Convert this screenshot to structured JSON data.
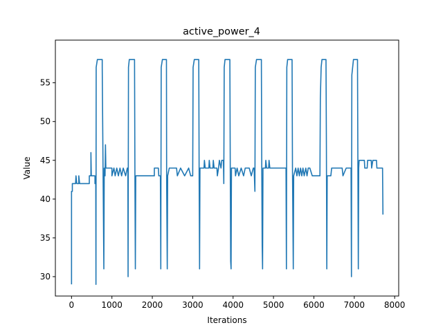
{
  "chart_data": {
    "type": "line",
    "title": "active_power_4",
    "xlabel": "Iterations",
    "ylabel": "Value",
    "xlim": [
      -400,
      8100
    ],
    "ylim": [
      27.5,
      60.5
    ],
    "x_ticks": [
      0,
      1000,
      2000,
      3000,
      4000,
      5000,
      6000,
      7000,
      8000
    ],
    "y_ticks": [
      30,
      35,
      40,
      45,
      50,
      55
    ],
    "grid": false,
    "legend": "none",
    "series": [
      {
        "color": "#1f77b4",
        "points": [
          [
            0,
            29
          ],
          [
            0,
            41
          ],
          [
            20,
            41
          ],
          [
            20,
            42
          ],
          [
            100,
            42
          ],
          [
            110,
            43
          ],
          [
            130,
            42
          ],
          [
            180,
            42
          ],
          [
            180,
            43
          ],
          [
            200,
            42
          ],
          [
            440,
            42
          ],
          [
            440,
            43
          ],
          [
            480,
            43
          ],
          [
            480,
            46
          ],
          [
            490,
            43
          ],
          [
            580,
            43
          ],
          [
            580,
            42
          ],
          [
            600,
            42
          ],
          [
            605,
            29
          ],
          [
            610,
            57
          ],
          [
            640,
            58
          ],
          [
            760,
            58
          ],
          [
            760,
            57
          ],
          [
            780,
            44
          ],
          [
            800,
            31
          ],
          [
            810,
            44
          ],
          [
            830,
            43
          ],
          [
            840,
            47
          ],
          [
            850,
            44
          ],
          [
            1000,
            44
          ],
          [
            1000,
            43
          ],
          [
            1050,
            44
          ],
          [
            1080,
            43
          ],
          [
            1120,
            44
          ],
          [
            1160,
            43
          ],
          [
            1200,
            44
          ],
          [
            1240,
            43
          ],
          [
            1280,
            44
          ],
          [
            1340,
            43
          ],
          [
            1380,
            44
          ],
          [
            1395,
            44
          ],
          [
            1400,
            30
          ],
          [
            1410,
            57
          ],
          [
            1430,
            58
          ],
          [
            1560,
            58
          ],
          [
            1570,
            42
          ],
          [
            1580,
            31
          ],
          [
            1590,
            43
          ],
          [
            1700,
            43
          ],
          [
            1800,
            43
          ],
          [
            2000,
            43
          ],
          [
            2050,
            43
          ],
          [
            2050,
            44
          ],
          [
            2150,
            44
          ],
          [
            2160,
            43
          ],
          [
            2200,
            43
          ],
          [
            2210,
            31
          ],
          [
            2220,
            57
          ],
          [
            2250,
            58
          ],
          [
            2350,
            58
          ],
          [
            2355,
            42
          ],
          [
            2370,
            31
          ],
          [
            2380,
            43
          ],
          [
            2420,
            44
          ],
          [
            2600,
            44
          ],
          [
            2620,
            43
          ],
          [
            2700,
            44
          ],
          [
            2800,
            43
          ],
          [
            2900,
            44
          ],
          [
            2950,
            43
          ],
          [
            3000,
            43
          ],
          [
            3010,
            57
          ],
          [
            3040,
            58
          ],
          [
            3150,
            58
          ],
          [
            3160,
            42
          ],
          [
            3170,
            31
          ],
          [
            3180,
            44
          ],
          [
            3280,
            44
          ],
          [
            3290,
            45
          ],
          [
            3310,
            44
          ],
          [
            3400,
            44
          ],
          [
            3410,
            45
          ],
          [
            3430,
            44
          ],
          [
            3500,
            44
          ],
          [
            3510,
            45
          ],
          [
            3530,
            44
          ],
          [
            3600,
            44
          ],
          [
            3610,
            43
          ],
          [
            3640,
            44
          ],
          [
            3660,
            45
          ],
          [
            3700,
            44
          ],
          [
            3720,
            45
          ],
          [
            3760,
            45
          ],
          [
            3770,
            42
          ],
          [
            3780,
            57
          ],
          [
            3800,
            58
          ],
          [
            3920,
            58
          ],
          [
            3930,
            44
          ],
          [
            3940,
            32
          ],
          [
            3950,
            31
          ],
          [
            3960,
            44
          ],
          [
            4050,
            44
          ],
          [
            4060,
            43
          ],
          [
            4100,
            44
          ],
          [
            4140,
            43
          ],
          [
            4200,
            44
          ],
          [
            4260,
            43
          ],
          [
            4300,
            44
          ],
          [
            4400,
            44
          ],
          [
            4450,
            43
          ],
          [
            4500,
            44
          ],
          [
            4520,
            44
          ],
          [
            4540,
            41
          ],
          [
            4550,
            57
          ],
          [
            4580,
            58
          ],
          [
            4700,
            58
          ],
          [
            4710,
            44
          ],
          [
            4720,
            34
          ],
          [
            4730,
            31
          ],
          [
            4740,
            44
          ],
          [
            4800,
            44
          ],
          [
            4810,
            45
          ],
          [
            4830,
            44
          ],
          [
            4880,
            44
          ],
          [
            4890,
            45
          ],
          [
            4910,
            44
          ],
          [
            5000,
            44
          ],
          [
            5100,
            44
          ],
          [
            5200,
            44
          ],
          [
            5310,
            44
          ],
          [
            5320,
            31
          ],
          [
            5330,
            57
          ],
          [
            5350,
            58
          ],
          [
            5460,
            58
          ],
          [
            5470,
            44
          ],
          [
            5490,
            31
          ],
          [
            5500,
            43
          ],
          [
            5550,
            44
          ],
          [
            5580,
            43
          ],
          [
            5610,
            44
          ],
          [
            5640,
            43
          ],
          [
            5670,
            44
          ],
          [
            5700,
            43
          ],
          [
            5730,
            44
          ],
          [
            5760,
            43
          ],
          [
            5800,
            44
          ],
          [
            5830,
            43
          ],
          [
            5860,
            44
          ],
          [
            5900,
            44
          ],
          [
            5960,
            43
          ],
          [
            6100,
            43
          ],
          [
            6150,
            43
          ],
          [
            6160,
            53
          ],
          [
            6180,
            57
          ],
          [
            6200,
            58
          ],
          [
            6300,
            58
          ],
          [
            6310,
            47
          ],
          [
            6320,
            31
          ],
          [
            6330,
            43
          ],
          [
            6420,
            43
          ],
          [
            6440,
            44
          ],
          [
            6600,
            44
          ],
          [
            6700,
            44
          ],
          [
            6720,
            43
          ],
          [
            6800,
            44
          ],
          [
            6900,
            44
          ],
          [
            6920,
            44
          ],
          [
            6930,
            30
          ],
          [
            6940,
            56
          ],
          [
            6960,
            57
          ],
          [
            6980,
            58
          ],
          [
            7080,
            58
          ],
          [
            7090,
            44
          ],
          [
            7100,
            31
          ],
          [
            7110,
            44
          ],
          [
            7120,
            45
          ],
          [
            7250,
            45
          ],
          [
            7260,
            44
          ],
          [
            7320,
            44
          ],
          [
            7330,
            45
          ],
          [
            7420,
            45
          ],
          [
            7430,
            44
          ],
          [
            7460,
            45
          ],
          [
            7550,
            45
          ],
          [
            7560,
            44
          ],
          [
            7700,
            44
          ],
          [
            7710,
            38
          ]
        ]
      }
    ]
  }
}
